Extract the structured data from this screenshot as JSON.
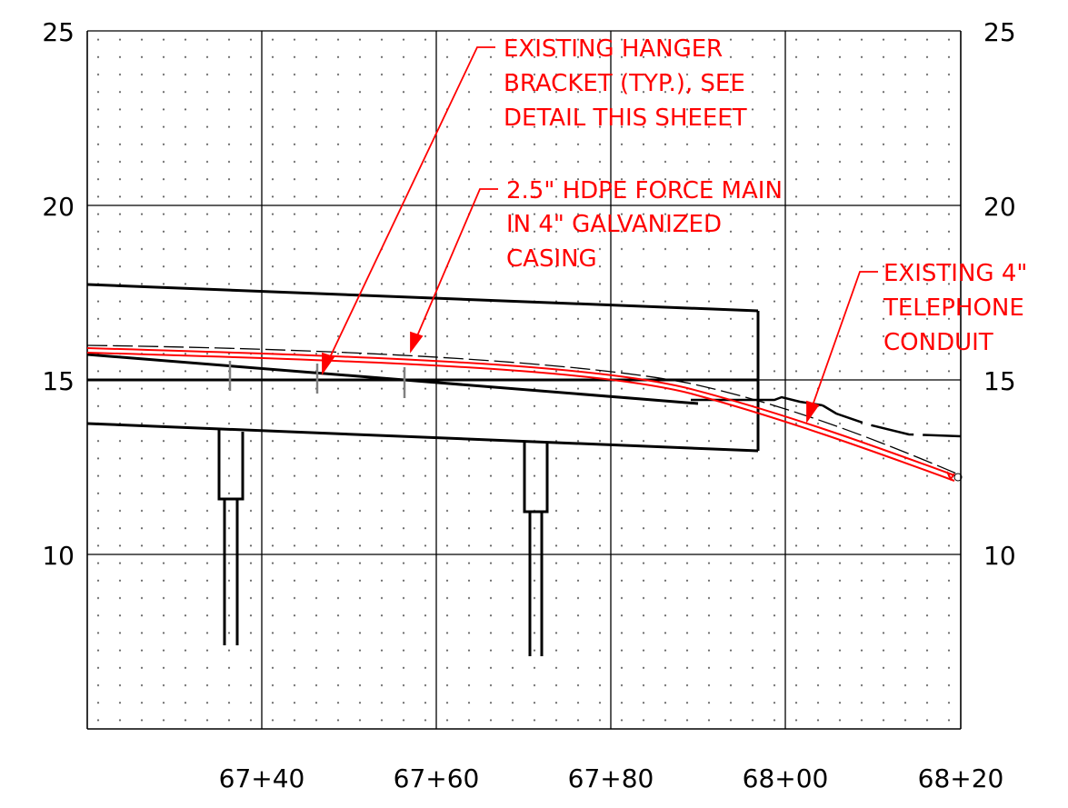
{
  "axes": {
    "left_y_labels": [
      "25",
      "20",
      "15",
      "10"
    ],
    "right_y_labels": [
      "25",
      "20",
      "15",
      "10"
    ],
    "x_labels": [
      "67+40",
      "67+60",
      "67+80",
      "68+00",
      "68+20"
    ]
  },
  "callouts": [
    {
      "lines": [
        "EXISTING HANGER",
        "BRACKET (TYP.), SEE",
        "DETAIL THIS SHEEET"
      ]
    },
    {
      "lines": [
        "2.5\" HDPE FORCE MAIN",
        "IN 4\" GALVANIZED",
        "CASING"
      ]
    },
    {
      "lines": [
        "EXISTING 4\"",
        "TELEPHONE",
        "CONDUIT"
      ]
    }
  ],
  "colors": {
    "callout": "#ff0000",
    "structure": "#000000",
    "grid": "#000000",
    "hanger": "#808080"
  }
}
